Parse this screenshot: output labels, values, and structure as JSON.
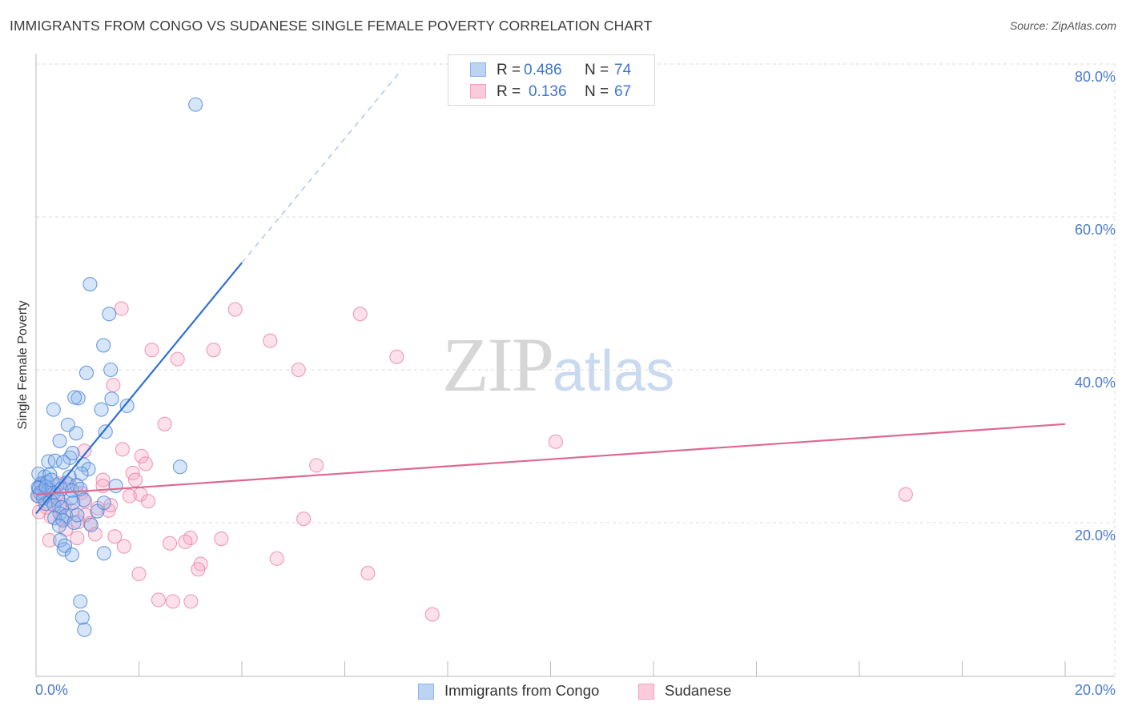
{
  "header": {
    "title": "IMMIGRANTS FROM CONGO VS SUDANESE SINGLE FEMALE POVERTY CORRELATION CHART",
    "source": "Source: ZipAtlas.com"
  },
  "watermark": {
    "zip": "ZIP",
    "atlas": "atlas"
  },
  "legend": {
    "rows": [
      {
        "r_label": "R =",
        "r_value": "0.486",
        "n_label": "N =",
        "n_value": "74",
        "color": "#8db4ea"
      },
      {
        "r_label": "R =",
        "r_value": "0.136",
        "n_label": "N =",
        "n_value": "67",
        "color": "#f4a3bf"
      }
    ]
  },
  "bottom_legend": {
    "series1": "Immigrants from Congo",
    "series2": "Sudanese"
  },
  "axes": {
    "y_ticks": [
      "80.0%",
      "60.0%",
      "40.0%",
      "20.0%"
    ],
    "x_min_label": "0.0%",
    "x_max_label": "20.0%"
  },
  "chart_data": {
    "type": "scatter",
    "title": "IMMIGRANTS FROM CONGO VS SUDANESE SINGLE FEMALE POVERTY CORRELATION CHART",
    "xlabel": "",
    "ylabel": "Single Female Poverty",
    "xlim": [
      0,
      20
    ],
    "ylim": [
      0,
      82
    ],
    "grid": true,
    "legend_placement": "top-center",
    "colors": {
      "congo": "#4a86d8",
      "sudanese": "#e6789e",
      "congo_line": "#2f6fd1",
      "sudanese_line": "#e0688f"
    },
    "series": [
      {
        "name": "Immigrants from Congo",
        "stats": {
          "R": 0.486,
          "N": 74
        },
        "trend": {
          "x0": 0.0,
          "y0": 21.2,
          "x1": 4.0,
          "y1": 54.0,
          "dash_to_x": 7.1,
          "dash_to_y": 79.2
        },
        "points": [
          [
            3.1,
            74.7
          ],
          [
            1.05,
            51.2
          ],
          [
            1.42,
            47.3
          ],
          [
            1.31,
            43.2
          ],
          [
            1.45,
            40.0
          ],
          [
            0.98,
            39.6
          ],
          [
            0.82,
            36.3
          ],
          [
            0.75,
            36.4
          ],
          [
            1.47,
            36.2
          ],
          [
            0.34,
            34.8
          ],
          [
            1.27,
            34.8
          ],
          [
            1.77,
            35.3
          ],
          [
            0.62,
            32.8
          ],
          [
            0.78,
            31.7
          ],
          [
            1.35,
            31.9
          ],
          [
            0.46,
            30.7
          ],
          [
            0.66,
            28.5
          ],
          [
            0.71,
            29.1
          ],
          [
            0.24,
            28.0
          ],
          [
            0.37,
            28.1
          ],
          [
            0.53,
            27.9
          ],
          [
            0.92,
            27.6
          ],
          [
            1.02,
            27.0
          ],
          [
            2.8,
            27.3
          ],
          [
            0.05,
            26.4
          ],
          [
            0.17,
            26.0
          ],
          [
            0.27,
            26.3
          ],
          [
            0.65,
            26.0
          ],
          [
            0.88,
            26.4
          ],
          [
            0.1,
            25.1
          ],
          [
            0.22,
            25.3
          ],
          [
            0.41,
            24.9
          ],
          [
            0.59,
            25.2
          ],
          [
            0.79,
            24.9
          ],
          [
            0.04,
            24.6
          ],
          [
            0.12,
            24.1
          ],
          [
            0.25,
            24.3
          ],
          [
            0.35,
            23.9
          ],
          [
            0.49,
            24.4
          ],
          [
            0.7,
            24.2
          ],
          [
            0.86,
            24.4
          ],
          [
            0.03,
            23.5
          ],
          [
            0.14,
            23.2
          ],
          [
            0.28,
            22.9
          ],
          [
            0.43,
            23.1
          ],
          [
            0.68,
            23.2
          ],
          [
            0.93,
            23.0
          ],
          [
            0.18,
            22.5
          ],
          [
            0.35,
            22.3
          ],
          [
            0.5,
            22.0
          ],
          [
            0.72,
            22.6
          ],
          [
            1.55,
            24.8
          ],
          [
            0.08,
            23.9
          ],
          [
            0.46,
            21.2
          ],
          [
            0.58,
            20.9
          ],
          [
            0.36,
            20.6
          ],
          [
            0.52,
            20.3
          ],
          [
            0.74,
            20.0
          ],
          [
            0.45,
            19.6
          ],
          [
            1.07,
            19.7
          ],
          [
            1.19,
            21.5
          ],
          [
            1.32,
            22.6
          ],
          [
            0.8,
            21.0
          ],
          [
            0.47,
            17.7
          ],
          [
            0.54,
            16.5
          ],
          [
            0.56,
            17.0
          ],
          [
            0.7,
            15.8
          ],
          [
            1.32,
            16.0
          ],
          [
            0.86,
            9.7
          ],
          [
            0.9,
            7.6
          ],
          [
            0.94,
            6.0
          ],
          [
            0.06,
            24.5
          ],
          [
            0.19,
            24.7
          ],
          [
            0.3,
            25.6
          ]
        ]
      },
      {
        "name": "Sudanese",
        "stats": {
          "R": 0.136,
          "N": 67
        },
        "trend": {
          "x0": 0.0,
          "y0": 23.7,
          "x1": 20.0,
          "y1": 32.9
        },
        "points": [
          [
            1.66,
            48.0
          ],
          [
            3.87,
            47.9
          ],
          [
            6.3,
            47.3
          ],
          [
            4.55,
            43.8
          ],
          [
            2.25,
            42.6
          ],
          [
            3.45,
            42.6
          ],
          [
            2.75,
            41.4
          ],
          [
            7.01,
            41.7
          ],
          [
            5.1,
            40.0
          ],
          [
            1.5,
            38.0
          ],
          [
            2.5,
            32.9
          ],
          [
            10.1,
            30.6
          ],
          [
            1.68,
            29.6
          ],
          [
            2.05,
            28.7
          ],
          [
            0.94,
            29.4
          ],
          [
            2.13,
            27.7
          ],
          [
            5.45,
            27.5
          ],
          [
            1.88,
            26.5
          ],
          [
            1.93,
            25.6
          ],
          [
            1.3,
            25.6
          ],
          [
            0.88,
            23.9
          ],
          [
            1.3,
            24.8
          ],
          [
            0.1,
            24.9
          ],
          [
            0.45,
            25.1
          ],
          [
            0.65,
            25.0
          ],
          [
            0.3,
            23.4
          ],
          [
            1.82,
            23.5
          ],
          [
            2.03,
            23.7
          ],
          [
            2.18,
            22.8
          ],
          [
            0.2,
            22.0
          ],
          [
            0.45,
            22.0
          ],
          [
            0.7,
            21.6
          ],
          [
            0.96,
            21.0
          ],
          [
            1.2,
            21.9
          ],
          [
            1.41,
            21.6
          ],
          [
            0.06,
            21.4
          ],
          [
            0.29,
            20.8
          ],
          [
            0.5,
            20.5
          ],
          [
            0.82,
            20.1
          ],
          [
            1.05,
            19.9
          ],
          [
            0.8,
            18.0
          ],
          [
            0.26,
            17.7
          ],
          [
            0.58,
            19.1
          ],
          [
            1.15,
            18.5
          ],
          [
            1.53,
            18.2
          ],
          [
            3.0,
            18.0
          ],
          [
            2.6,
            17.3
          ],
          [
            2.9,
            17.5
          ],
          [
            3.6,
            17.9
          ],
          [
            1.71,
            16.9
          ],
          [
            3.2,
            14.6
          ],
          [
            3.15,
            13.9
          ],
          [
            4.68,
            15.3
          ],
          [
            2.0,
            13.3
          ],
          [
            6.45,
            13.4
          ],
          [
            2.38,
            9.9
          ],
          [
            2.66,
            9.7
          ],
          [
            3.01,
            9.7
          ],
          [
            7.7,
            8.0
          ],
          [
            16.9,
            23.7
          ],
          [
            5.2,
            20.5
          ],
          [
            0.05,
            23.5
          ],
          [
            0.18,
            24.4
          ],
          [
            0.4,
            23.7
          ],
          [
            0.95,
            22.8
          ],
          [
            1.45,
            22.3
          ],
          [
            0.55,
            22.3
          ]
        ]
      }
    ]
  }
}
